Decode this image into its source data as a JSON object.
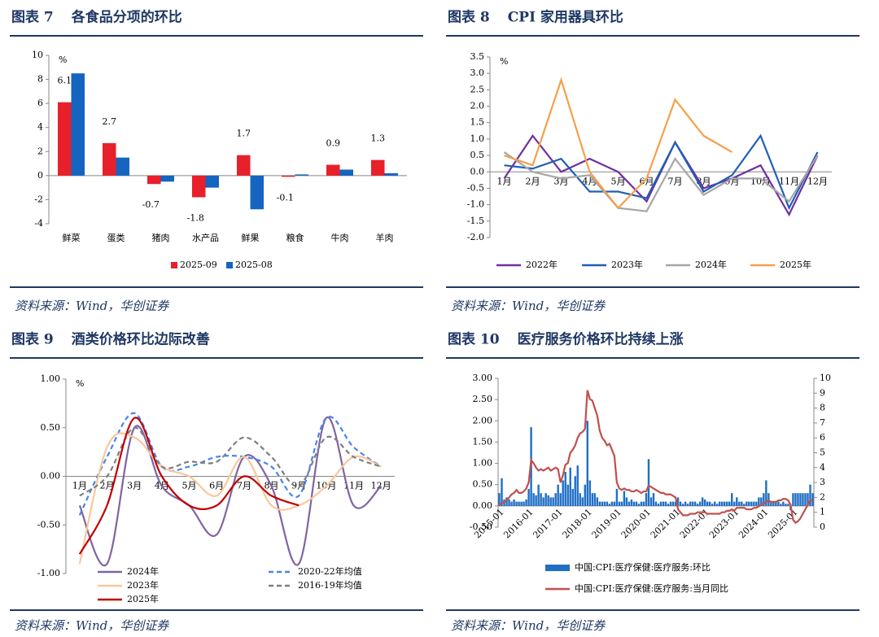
{
  "figures": [
    {
      "number": "图表 7",
      "title": "各食品分项的环比",
      "source": "资料来源：Wind，华创证券"
    },
    {
      "number": "图表 8",
      "title": "CPI 家用器具环比",
      "source": "资料来源：Wind，华创证券"
    },
    {
      "number": "图表 9",
      "title": "酒类价格环比边际改善",
      "source": "资料来源：Wind，华创证券"
    },
    {
      "number": "图表 10",
      "title": "医疗服务价格环比持续上涨",
      "source": "资料来源：Wind，华创证券"
    }
  ],
  "chart_data": [
    {
      "type": "bar",
      "y_label": "%",
      "categories": [
        "鲜菜",
        "蛋类",
        "猪肉",
        "水产品",
        "鲜果",
        "粮食",
        "牛肉",
        "羊肉"
      ],
      "series": [
        {
          "name": "2025-09",
          "color": "#e8202a",
          "data_labels": true,
          "values": [
            6.1,
            2.7,
            -0.7,
            -1.8,
            1.7,
            -0.1,
            0.9,
            1.3
          ]
        },
        {
          "name": "2025-08",
          "color": "#1565c0",
          "values": [
            8.5,
            1.5,
            -0.5,
            -1.0,
            -2.8,
            0.1,
            0.5,
            0.2
          ]
        }
      ],
      "ylim": [
        -4,
        10
      ],
      "yticks": [
        -4,
        -2,
        0,
        2,
        4,
        6,
        8,
        10
      ]
    },
    {
      "type": "line",
      "y_label": "%",
      "categories": [
        "1月",
        "2月",
        "3月",
        "4月",
        "5月",
        "6月",
        "7月",
        "8月",
        "9月",
        "10月",
        "11月",
        "12月"
      ],
      "series": [
        {
          "name": "2022年",
          "color": "#7030a0",
          "values": [
            -0.2,
            1.1,
            0.0,
            0.4,
            0.0,
            -0.9,
            0.9,
            -0.5,
            -0.2,
            0.2,
            -1.3,
            0.5
          ]
        },
        {
          "name": "2023年",
          "color": "#1f5fb4",
          "values": [
            0.2,
            0.1,
            0.4,
            -0.6,
            -0.6,
            -0.8,
            0.9,
            -0.6,
            -0.1,
            1.1,
            -1.1,
            0.6
          ]
        },
        {
          "name": "2024年",
          "color": "#a6a6a6",
          "values": [
            0.6,
            0.0,
            -0.2,
            -0.1,
            -1.1,
            -1.2,
            0.4,
            -0.7,
            -0.2,
            -0.2,
            -0.9,
            0.5
          ]
        },
        {
          "name": "2025年",
          "color": "#f4a04a",
          "values": [
            0.5,
            0.2,
            2.8,
            0.0,
            -1.1,
            -0.2,
            2.2,
            1.1,
            0.6,
            null,
            null,
            null
          ]
        }
      ],
      "ylim": [
        -2,
        3.5
      ],
      "yticks": [
        {
          "value": -2,
          "label": "-2.0"
        },
        -1.5,
        {
          "value": -1,
          "label": "-1.0"
        },
        -0.5,
        {
          "value": 0,
          "label": "0.0"
        },
        0.5,
        {
          "value": 1,
          "label": "1.0"
        },
        1.5,
        {
          "value": 2,
          "label": "2.0"
        },
        2.5,
        {
          "value": 3,
          "label": "3.0"
        },
        3.5
      ]
    },
    {
      "type": "line",
      "smooth": true,
      "y_label": "%",
      "categories": [
        "1月",
        "2月",
        "3月",
        "4月",
        "5月",
        "6月",
        "7月",
        "8月",
        "9月",
        "10月",
        "11月",
        "12月"
      ],
      "series": [
        {
          "name": "2024年",
          "color": "#8064a2",
          "values": [
            -0.3,
            -0.9,
            0.5,
            -0.1,
            -0.3,
            -0.6,
            0.2,
            -0.1,
            -0.9,
            0.6,
            -0.3,
            -0.1
          ]
        },
        {
          "name": "2020-22年均值",
          "color": "#4a86e8",
          "dash": true,
          "values": [
            -0.4,
            0.2,
            0.65,
            0.1,
            0.1,
            0.2,
            0.2,
            0.1,
            -0.2,
            0.6,
            0.3,
            0.1
          ]
        },
        {
          "name": "2023年",
          "color": "#f9c89b",
          "values": [
            -0.9,
            0.3,
            0.4,
            0.1,
            0.0,
            -0.2,
            0.2,
            -0.3,
            -0.3,
            -0.1,
            0.2,
            0.1
          ]
        },
        {
          "name": "2016-19年均值",
          "color": "#7f7f7f",
          "dash": true,
          "values": [
            -0.2,
            0.0,
            0.5,
            0.1,
            0.15,
            0.15,
            0.4,
            0.2,
            -0.1,
            0.4,
            0.2,
            0.1
          ]
        },
        {
          "name": "2025年",
          "color": "#c00000",
          "values": [
            -0.8,
            -0.3,
            0.6,
            0.0,
            -0.3,
            -0.3,
            0.0,
            -0.2,
            -0.3,
            null,
            null,
            null
          ]
        }
      ],
      "ylim": [
        -1,
        1
      ],
      "yticks": [
        {
          "value": -1,
          "label": "-1.00"
        },
        {
          "value": -0.5,
          "label": "-0.50"
        },
        {
          "value": 0,
          "label": "0.00"
        },
        {
          "value": 0.5,
          "label": "0.50"
        },
        {
          "value": 1,
          "label": "1.00"
        }
      ]
    },
    {
      "type": "combo",
      "x": [
        "2015-01",
        "2015-02",
        "2015-03",
        "2015-04",
        "2015-05",
        "2015-06",
        "2015-07",
        "2015-08",
        "2015-09",
        "2015-10",
        "2015-11",
        "2015-12",
        "2016-01",
        "2016-02",
        "2016-03",
        "2016-04",
        "2016-05",
        "2016-06",
        "2016-07",
        "2016-08",
        "2016-09",
        "2016-10",
        "2016-11",
        "2016-12",
        "2017-01",
        "2017-02",
        "2017-03",
        "2017-04",
        "2017-05",
        "2017-06",
        "2017-07",
        "2017-08",
        "2017-09",
        "2017-10",
        "2017-11",
        "2017-12",
        "2018-01",
        "2018-02",
        "2018-03",
        "2018-04",
        "2018-05",
        "2018-06",
        "2018-07",
        "2018-08",
        "2018-09",
        "2018-10",
        "2018-11",
        "2018-12",
        "2019-01",
        "2019-02",
        "2019-03",
        "2019-04",
        "2019-05",
        "2019-06",
        "2019-07",
        "2019-08",
        "2019-09",
        "2019-10",
        "2019-11",
        "2019-12",
        "2020-01",
        "2020-02",
        "2020-03",
        "2020-04",
        "2020-05",
        "2020-06",
        "2020-07",
        "2020-08",
        "2020-09",
        "2020-10",
        "2020-11",
        "2020-12",
        "2021-01",
        "2021-02",
        "2021-03",
        "2021-04",
        "2021-05",
        "2021-06",
        "2021-07",
        "2021-08",
        "2021-09",
        "2021-10",
        "2021-11",
        "2021-12",
        "2022-01",
        "2022-02",
        "2022-03",
        "2022-04",
        "2022-05",
        "2022-06",
        "2022-07",
        "2022-08",
        "2022-09",
        "2022-10",
        "2022-11",
        "2022-12",
        "2023-01",
        "2023-02",
        "2023-03",
        "2023-04",
        "2023-05",
        "2023-06",
        "2023-07",
        "2023-08",
        "2023-09",
        "2023-10",
        "2023-11",
        "2023-12",
        "2024-01",
        "2024-02",
        "2024-03",
        "2024-04",
        "2024-05",
        "2024-06",
        "2024-07",
        "2024-08",
        "2024-09",
        "2024-10",
        "2024-11",
        "2024-12",
        "2025-01",
        "2025-02",
        "2025-03",
        "2025-04",
        "2025-05",
        "2025-06",
        "2025-07",
        "2025-08",
        "2025-09"
      ],
      "series": [
        {
          "name": "中国:CPI:医疗保健:医疗服务:环比",
          "type": "bar",
          "color": "#1f6fc5",
          "values": [
            0.3,
            0.65,
            0.15,
            0.2,
            0.15,
            0.1,
            0.15,
            0.1,
            0.1,
            0.1,
            0.1,
            0.15,
            0.4,
            1.85,
            0.3,
            0.25,
            0.5,
            0.3,
            0.2,
            0.3,
            0.25,
            0.2,
            0.2,
            0.3,
            0.5,
            0.3,
            0.6,
            0.8,
            0.5,
            0.9,
            0.4,
            0.7,
            0.95,
            0.3,
            0.2,
            0.5,
            2.0,
            0.6,
            0.3,
            0.3,
            0.2,
            0.1,
            0.1,
            0.1,
            0.1,
            0.05,
            0.1,
            0.1,
            0.4,
            0.1,
            0.1,
            0.35,
            0.2,
            0.1,
            0.15,
            0.1,
            0.1,
            0.05,
            0.1,
            0.1,
            0.3,
            1.1,
            0.2,
            0.3,
            0.1,
            0.05,
            0.1,
            0.1,
            0.1,
            0.05,
            0.1,
            0.1,
            0.1,
            0.2,
            0.1,
            0.05,
            0.1,
            0.05,
            0.1,
            0.1,
            0.1,
            0.05,
            0.1,
            0.2,
            0.15,
            0.1,
            0.1,
            0.05,
            0.1,
            0.05,
            0.1,
            0.1,
            0.1,
            0.1,
            0.1,
            0.3,
            0.1,
            0.2,
            0.1,
            0.1,
            0.05,
            0.1,
            0.1,
            0.1,
            0.1,
            0.1,
            0.2,
            0.2,
            0.3,
            0.6,
            0.3,
            0.1,
            0.1,
            0.1,
            0.1,
            0.05,
            0.1,
            0.05,
            0.05,
            -0.1,
            0.3,
            0.3,
            0.3,
            0.3,
            0.3,
            0.3,
            0.3,
            0.5,
            0.3
          ]
        },
        {
          "name": "中国:CPI:医疗保健:医疗服务:当月同比",
          "type": "line",
          "axis": "y2",
          "color": "#c0504d",
          "values": [
            1.5,
            1.6,
            1.7,
            1.8,
            2.0,
            2.2,
            2.3,
            2.5,
            2.3,
            2.3,
            2.4,
            2.6,
            3.0,
            4.5,
            4.3,
            4.0,
            3.8,
            3.9,
            3.8,
            3.9,
            4.0,
            3.8,
            3.9,
            4.0,
            3.9,
            3.0,
            3.5,
            4.2,
            4.3,
            5.0,
            5.2,
            5.5,
            6.0,
            6.3,
            6.4,
            6.6,
            9.2,
            8.6,
            8.5,
            8.0,
            7.5,
            6.5,
            6.0,
            5.8,
            5.5,
            5.6,
            5.2,
            4.8,
            3.0,
            2.6,
            2.5,
            2.6,
            2.5,
            2.5,
            2.4,
            2.4,
            2.5,
            2.4,
            2.3,
            2.4,
            2.4,
            2.8,
            2.7,
            2.6,
            2.5,
            2.4,
            2.3,
            2.3,
            2.2,
            2.2,
            2.2,
            2.1,
            2.0,
            1.2,
            1.0,
            0.8,
            0.8,
            0.8,
            0.9,
            0.9,
            0.9,
            1.0,
            1.0,
            1.0,
            1.0,
            0.9,
            0.9,
            0.9,
            0.9,
            0.9,
            0.9,
            1.0,
            1.0,
            1.1,
            1.1,
            1.2,
            1.1,
            1.3,
            1.3,
            1.3,
            1.3,
            1.2,
            1.2,
            1.2,
            1.3,
            1.3,
            1.4,
            1.5,
            1.6,
            1.7,
            1.8,
            1.7,
            1.7,
            1.7,
            1.8,
            1.8,
            1.9,
            1.9,
            1.8,
            1.5,
            0.5,
            0.3,
            0.4,
            0.6,
            0.9,
            1.2,
            1.5,
            1.8,
            1.8
          ]
        }
      ],
      "ylim": [
        -0.5,
        3
      ],
      "yticks": [
        {
          "value": -0.5,
          "label": "-0.50"
        },
        {
          "value": 0,
          "label": "0.00"
        },
        {
          "value": 0.5,
          "label": "0.50"
        },
        {
          "value": 1,
          "label": "1.00"
        },
        {
          "value": 1.5,
          "label": "1.50"
        },
        {
          "value": 2,
          "label": "2.00"
        },
        {
          "value": 2.5,
          "label": "2.50"
        },
        {
          "value": 3,
          "label": "3.00"
        }
      ],
      "y2lim": [
        0,
        10
      ],
      "y2ticks": [
        0,
        1,
        2,
        3,
        4,
        5,
        6,
        7,
        8,
        9,
        10
      ]
    }
  ]
}
